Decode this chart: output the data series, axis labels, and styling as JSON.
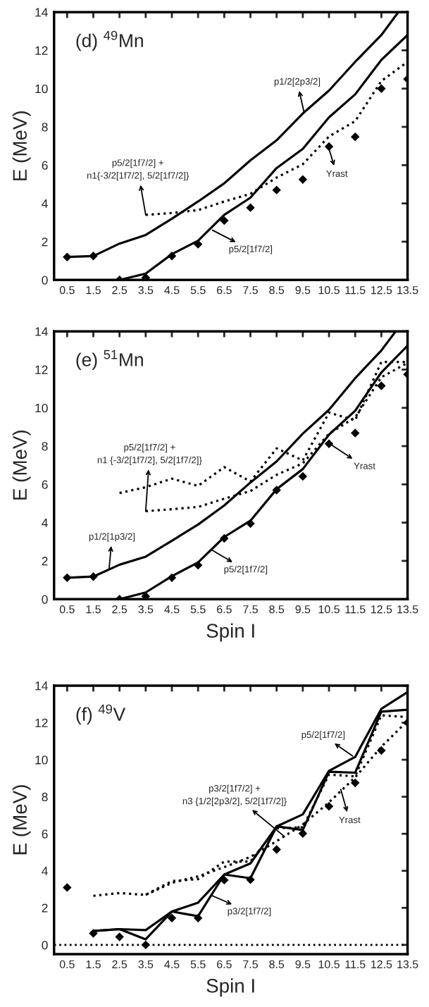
{
  "chart_data": [
    {
      "type": "line",
      "title": "(d) $^{49}$Mn",
      "ylabel": "E (MeV)",
      "xlim": [
        0,
        13.5
      ],
      "ylim": [
        0,
        14
      ],
      "xticks": [
        0.5,
        1.5,
        2.5,
        3.5,
        4.5,
        5.5,
        6.5,
        7.5,
        8.5,
        9.5,
        10.5,
        11.5,
        12.5,
        13.5
      ],
      "yticks": [
        0,
        2,
        4,
        6,
        8,
        10,
        12,
        14
      ],
      "series": [
        {
          "type": "line",
          "line_style": "solid",
          "color": "#000000",
          "x": [
            0.5,
            1.5,
            2.5,
            3.5,
            4.5,
            5.5,
            6.5,
            7.5,
            8.5,
            9.5,
            10.5,
            11.5,
            12.5,
            13.15
          ],
          "values": [
            1.2,
            1.25,
            1.9,
            2.35,
            3.2,
            4.1,
            5.05,
            6.25,
            7.3,
            8.7,
            9.9,
            11.4,
            12.8,
            14
          ]
        },
        {
          "type": "line",
          "line_style": "solid",
          "color": "#000000",
          "x": [
            2.5,
            3.5,
            4.5,
            5.5,
            6.5,
            7.5,
            8.5,
            9.5,
            10.5,
            11.5,
            12.5,
            13.5
          ],
          "values": [
            0,
            0.33,
            1.35,
            2.05,
            3.4,
            4.3,
            5.85,
            6.85,
            8.5,
            9.7,
            11.5,
            12.8
          ]
        },
        {
          "type": "line",
          "line_style": "dotted",
          "color": "#000000",
          "x": [
            3.5,
            4.5,
            5.5,
            6.5,
            7.5,
            8.5,
            9.5,
            10.5,
            11.5,
            12.5,
            13.5
          ],
          "values": [
            3.4,
            3.5,
            3.65,
            4.1,
            4.5,
            5.35,
            6.05,
            7.5,
            8.3,
            10.4,
            11.4
          ]
        },
        {
          "type": "scatter",
          "marker": "diamond",
          "color": "#000000",
          "x": [
            0.5,
            1.5,
            2.5,
            3.5,
            4.5,
            5.5,
            6.5,
            7.5,
            8.5,
            9.5,
            10.5,
            11.5,
            12.5,
            13.5
          ],
          "values": [
            1.2,
            1.25,
            0,
            0.12,
            1.25,
            1.87,
            3.1,
            3.78,
            4.7,
            5.25,
            6.97,
            7.48,
            10.0,
            10.5
          ]
        }
      ],
      "annotations": [
        {
          "text": "p1/2[2p3/2]",
          "x": 9.55,
          "y": 8.75
        },
        {
          "text": "p5/2[1f7/2] +\nn1{-3/2[1f7/2], 5/2[1f7/2]}",
          "x": 3.5,
          "y": 3.4
        },
        {
          "text": "p5/2[1f7/2]",
          "x": 6.05,
          "y": 2.6
        },
        {
          "text": "Yrast",
          "x": 10.5,
          "y": 6.85
        }
      ]
    },
    {
      "type": "line",
      "title": "(e) $^{51}$Mn",
      "xlabel": "Spin I",
      "ylabel": "E (MeV)",
      "xlim": [
        0,
        13.5
      ],
      "ylim": [
        0,
        14
      ],
      "xticks": [
        0.5,
        1.5,
        2.5,
        3.5,
        4.5,
        5.5,
        6.5,
        7.5,
        8.5,
        9.5,
        10.5,
        11.5,
        12.5,
        13.5
      ],
      "yticks": [
        0,
        2,
        4,
        6,
        8,
        10,
        12,
        14
      ],
      "series": [
        {
          "type": "line",
          "line_style": "solid",
          "color": "#000000",
          "x": [
            0.5,
            1.5,
            2.5,
            3.5,
            4.5,
            5.5,
            6.5,
            7.5,
            8.5,
            9.5,
            10.5,
            11.5,
            12.5,
            13.05
          ],
          "values": [
            1.12,
            1.18,
            1.8,
            2.22,
            3.05,
            3.9,
            4.9,
            6.1,
            7.2,
            8.65,
            9.9,
            11.55,
            13.0,
            14
          ]
        },
        {
          "type": "line",
          "line_style": "solid",
          "color": "#000000",
          "x": [
            2.5,
            3.5,
            4.5,
            5.5,
            6.5,
            7.5,
            8.5,
            9.5,
            10.5,
            11.5,
            12.5,
            13.5
          ],
          "values": [
            0,
            0.35,
            1.2,
            1.92,
            3.25,
            4.1,
            5.75,
            6.8,
            8.6,
            9.85,
            11.85,
            13.25
          ]
        },
        {
          "type": "line",
          "line_style": "dotted",
          "color": "#000000",
          "x": [
            2.5,
            3.5,
            4.5,
            5.5,
            6.5,
            7.5,
            8.5,
            9.5,
            10.5,
            11.5,
            12.5,
            13.5
          ],
          "values": [
            5.55,
            5.85,
            6.3,
            5.92,
            6.9,
            6.15,
            7.88,
            7.25,
            9.75,
            9.35,
            12.4,
            12.4
          ]
        },
        {
          "type": "line",
          "line_style": "dotted",
          "color": "#000000",
          "x": [
            3.5,
            4.5,
            5.5,
            6.5,
            7.5,
            8.5,
            9.5,
            10.5,
            11.5,
            12.5,
            13.5
          ],
          "values": [
            4.6,
            4.7,
            4.82,
            5.25,
            5.65,
            6.5,
            7.1,
            8.65,
            9.5,
            11.6,
            12.35
          ]
        },
        {
          "type": "scatter",
          "marker": "diamond",
          "color": "#000000",
          "x": [
            0.5,
            1.5,
            2.5,
            3.5,
            4.5,
            5.5,
            6.5,
            7.5,
            8.5,
            9.5,
            10.5,
            11.5,
            12.5,
            13.5
          ],
          "values": [
            1.12,
            1.18,
            0,
            0.15,
            1.12,
            1.78,
            3.18,
            3.95,
            5.7,
            6.42,
            8.12,
            8.68,
            11.15,
            11.75
          ]
        }
      ],
      "annotations": [
        {
          "text": "p5/2[1f7/2] +\nn1 {-3/2[1f7/2], 5/2[1f7/2]}",
          "x": 3.5,
          "y": 4.6
        },
        {
          "text": "p1/2[1p3/2]",
          "x": 2.1,
          "y": 1.55
        },
        {
          "text": "p5/2[1f7/2]",
          "x": 6.05,
          "y": 2.55
        },
        {
          "text": "Yrast",
          "x": 10.55,
          "y": 8.1
        }
      ]
    },
    {
      "type": "line",
      "title": "(f) $^{49}$V",
      "xlabel": "Spin I",
      "ylabel": "E (MeV)",
      "xlim": [
        0,
        13.5
      ],
      "ylim": [
        -0.5,
        14
      ],
      "xticks": [
        0.5,
        1.5,
        2.5,
        3.5,
        4.5,
        5.5,
        6.5,
        7.5,
        8.5,
        9.5,
        10.5,
        11.5,
        12.5,
        13.5
      ],
      "yticks": [
        0,
        2,
        4,
        6,
        8,
        10,
        12,
        14
      ],
      "ref_lines": [
        {
          "axis": "y",
          "value": 0,
          "line_style": "dotted",
          "color": "#000000"
        }
      ],
      "series": [
        {
          "type": "line",
          "line_style": "solid",
          "color": "#000000",
          "x": [
            1.5,
            2.5,
            3.5,
            4.5,
            5.5,
            6.5,
            7.5,
            8.5,
            9.5,
            10.5,
            11.5,
            12.5,
            13.5
          ],
          "values": [
            0.75,
            0.85,
            0.8,
            1.8,
            2.28,
            3.8,
            4.4,
            6.4,
            7.05,
            9.4,
            10.15,
            12.75,
            13.65
          ]
        },
        {
          "type": "line",
          "line_style": "solid",
          "color": "#000000",
          "x": [
            1.5,
            2.5,
            3.5,
            4.5,
            5.5,
            6.5,
            7.5,
            8.5,
            9.5,
            10.5,
            11.5,
            12.5,
            13.5
          ],
          "values": [
            0.75,
            0.85,
            0.3,
            1.8,
            1.55,
            3.8,
            3.6,
            6.4,
            6.2,
            9.35,
            9.3,
            12.6,
            12.7
          ]
        },
        {
          "type": "line",
          "line_style": "dotted",
          "color": "#000000",
          "x": [
            1.5,
            2.5,
            3.5,
            4.5,
            5.5,
            6.5,
            7.5,
            8.5,
            9.5,
            10.5,
            11.5,
            12.5,
            13.5
          ],
          "values": [
            2.65,
            2.8,
            2.7,
            3.45,
            3.55,
            4.5,
            4.5,
            6.3,
            6.35,
            9.2,
            9.1,
            12.4,
            12.3
          ]
        },
        {
          "type": "line",
          "line_style": "dotted",
          "color": "#000000",
          "x": [
            3.5,
            4.5,
            5.5,
            6.5,
            7.5,
            8.5,
            9.5,
            10.5,
            11.5,
            12.5,
            13.5
          ],
          "values": [
            2.7,
            3.35,
            3.7,
            4.2,
            4.75,
            5.6,
            6.5,
            7.7,
            9.05,
            10.7,
            12.1
          ]
        },
        {
          "type": "scatter",
          "marker": "diamond",
          "color": "#000000",
          "x": [
            0.5,
            1.5,
            2.5,
            3.5,
            4.5,
            5.5,
            6.5,
            7.5,
            8.5,
            9.5,
            10.5,
            11.5,
            12.5,
            13.5
          ],
          "values": [
            3.1,
            0.62,
            0.43,
            0,
            1.45,
            1.45,
            3.5,
            3.52,
            5.15,
            6.02,
            7.48,
            8.75,
            10.5,
            12.0
          ]
        }
      ],
      "annotations": [
        {
          "text": "p5/2[1f7/2]",
          "x": 11.4,
          "y": 10.2
        },
        {
          "text": "p3/2[1f7/2] +\nn3 {1/2[2p3/2], 5/2[1f7/2]}",
          "x": 8.8,
          "y": 5.85
        },
        {
          "text": "Yrast",
          "x": 10.95,
          "y": 8.4
        },
        {
          "text": "p3/2[1f7/2]",
          "x": 6.0,
          "y": 2.68
        }
      ]
    }
  ]
}
